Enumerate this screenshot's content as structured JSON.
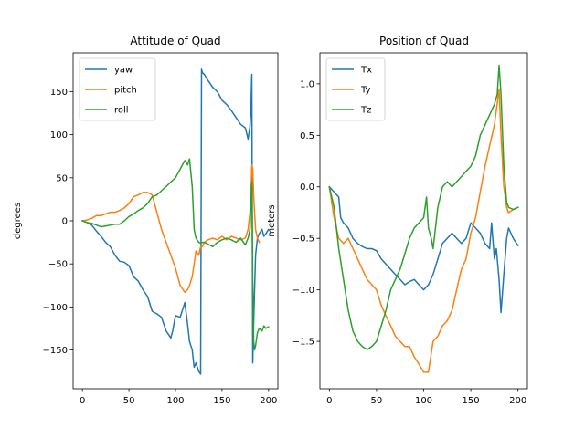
{
  "chart_data": [
    {
      "type": "line",
      "title": "Attitude of Quad",
      "xlabel": "",
      "ylabel": "degrees",
      "xlim": [
        -10,
        210
      ],
      "ylim": [
        -195,
        195
      ],
      "xticks": [
        0,
        50,
        100,
        150,
        200
      ],
      "yticks": [
        -150,
        -100,
        -50,
        0,
        50,
        100,
        150
      ],
      "tick_labels": {
        "x": [
          "0",
          "50",
          "100",
          "150",
          "200"
        ],
        "y": [
          "−150",
          "−100",
          "−50",
          "0",
          "50",
          "100",
          "150"
        ]
      },
      "grid": false,
      "legend_position": "top-left",
      "series": [
        {
          "name": "yaw",
          "color": "#1f77b4",
          "x": [
            0,
            5,
            10,
            15,
            20,
            25,
            30,
            35,
            40,
            45,
            50,
            55,
            60,
            65,
            70,
            75,
            80,
            85,
            90,
            95,
            97,
            100,
            105,
            110,
            113,
            115,
            118,
            120,
            122,
            125,
            127,
            128,
            129,
            131,
            135,
            140,
            145,
            150,
            155,
            160,
            165,
            170,
            175,
            178,
            180,
            181,
            182,
            183,
            184,
            185,
            186,
            188,
            190,
            193,
            195,
            197,
            200
          ],
          "values": [
            0,
            -2,
            -5,
            -12,
            -18,
            -25,
            -30,
            -40,
            -47,
            -48,
            -52,
            -65,
            -70,
            -80,
            -88,
            -105,
            -108,
            -112,
            -128,
            -136,
            -128,
            -110,
            -112,
            -95,
            -120,
            -140,
            -150,
            -170,
            -165,
            -175,
            -178,
            176,
            172,
            170,
            163,
            155,
            150,
            140,
            135,
            128,
            120,
            112,
            108,
            95,
            110,
            130,
            170,
            -165,
            -120,
            -80,
            -40,
            -20,
            -15,
            -10,
            -18,
            -15,
            -10
          ]
        },
        {
          "name": "pitch",
          "color": "#ff7f0e",
          "x": [
            0,
            5,
            10,
            15,
            20,
            25,
            30,
            35,
            40,
            45,
            50,
            55,
            60,
            65,
            70,
            75,
            80,
            85,
            90,
            95,
            100,
            105,
            110,
            113,
            115,
            118,
            120,
            122,
            125,
            127,
            129,
            131,
            135,
            140,
            145,
            150,
            155,
            160,
            165,
            170,
            175,
            178,
            180,
            181,
            182,
            183,
            184,
            185,
            186,
            188,
            190
          ],
          "values": [
            0,
            1,
            3,
            6,
            6,
            8,
            10,
            10,
            12,
            15,
            20,
            28,
            30,
            33,
            33,
            30,
            10,
            -10,
            -25,
            -40,
            -55,
            -75,
            -83,
            -80,
            -75,
            -65,
            -50,
            -35,
            -40,
            -30,
            -30,
            -25,
            -22,
            -20,
            -22,
            -18,
            -22,
            -18,
            -20,
            -22,
            -20,
            -10,
            10,
            30,
            65,
            60,
            30,
            10,
            -10,
            -20,
            -25
          ]
        },
        {
          "name": "roll",
          "color": "#2ca02c",
          "x": [
            0,
            5,
            10,
            15,
            20,
            25,
            30,
            35,
            40,
            45,
            50,
            55,
            60,
            65,
            70,
            75,
            80,
            85,
            90,
            95,
            100,
            105,
            110,
            113,
            115,
            118,
            120,
            122,
            125,
            127,
            129,
            131,
            135,
            140,
            145,
            150,
            155,
            160,
            165,
            170,
            175,
            178,
            180,
            181,
            182,
            183,
            184,
            185,
            186,
            188,
            190,
            193,
            195,
            197,
            200
          ],
          "values": [
            0,
            -2,
            -3,
            -5,
            -7,
            -6,
            -5,
            -4,
            -4,
            0,
            5,
            8,
            12,
            15,
            20,
            28,
            30,
            35,
            40,
            45,
            50,
            60,
            70,
            65,
            72,
            40,
            -10,
            -20,
            -25,
            -26,
            -25,
            -25,
            -27,
            -30,
            -25,
            -22,
            -20,
            -22,
            -25,
            -20,
            -28,
            -20,
            -10,
            20,
            45,
            -70,
            -140,
            -150,
            -145,
            -130,
            -125,
            -128,
            -122,
            -125,
            -123
          ]
        }
      ]
    },
    {
      "type": "line",
      "title": "Position of Quad",
      "xlabel": "",
      "ylabel": "meters",
      "xlim": [
        -10,
        210
      ],
      "ylim": [
        -1.96,
        1.3
      ],
      "xticks": [
        0,
        50,
        100,
        150,
        200
      ],
      "yticks": [
        -1.5,
        -1.0,
        -0.5,
        0.0,
        0.5,
        1.0
      ],
      "tick_labels": {
        "x": [
          "0",
          "50",
          "100",
          "150",
          "200"
        ],
        "y": [
          "−1.5",
          "−1.0",
          "−0.5",
          "0.0",
          "0.5",
          "1.0"
        ]
      },
      "grid": false,
      "legend_position": "top-left",
      "series": [
        {
          "name": "Tx",
          "color": "#1f77b4",
          "x": [
            0,
            5,
            10,
            12,
            15,
            20,
            25,
            30,
            35,
            40,
            45,
            50,
            55,
            60,
            65,
            70,
            75,
            80,
            85,
            90,
            95,
            100,
            105,
            110,
            115,
            120,
            125,
            130,
            135,
            140,
            145,
            150,
            155,
            160,
            165,
            170,
            172,
            175,
            177,
            180,
            182,
            185,
            188,
            190,
            195,
            200
          ],
          "values": [
            0,
            -0.05,
            -0.1,
            -0.3,
            -0.35,
            -0.4,
            -0.5,
            -0.55,
            -0.58,
            -0.6,
            -0.6,
            -0.62,
            -0.7,
            -0.75,
            -0.8,
            -0.85,
            -0.9,
            -0.95,
            -0.92,
            -0.9,
            -0.95,
            -1.0,
            -0.95,
            -0.85,
            -0.7,
            -0.55,
            -0.5,
            -0.45,
            -0.5,
            -0.55,
            -0.5,
            -0.35,
            -0.4,
            -0.45,
            -0.55,
            -0.6,
            -0.35,
            -0.7,
            -0.6,
            -0.9,
            -1.22,
            -0.85,
            -0.5,
            -0.4,
            -0.5,
            -0.57
          ]
        },
        {
          "name": "Ty",
          "color": "#ff7f0e",
          "x": [
            0,
            5,
            10,
            15,
            20,
            25,
            30,
            35,
            40,
            45,
            50,
            55,
            60,
            65,
            70,
            75,
            80,
            85,
            90,
            95,
            100,
            105,
            110,
            115,
            120,
            125,
            130,
            135,
            140,
            145,
            150,
            155,
            160,
            165,
            170,
            175,
            180,
            182,
            185,
            188,
            190,
            195,
            200
          ],
          "values": [
            0,
            -0.3,
            -0.5,
            -0.55,
            -0.5,
            -0.6,
            -0.7,
            -0.8,
            -0.9,
            -0.95,
            -1.0,
            -1.15,
            -1.25,
            -1.35,
            -1.45,
            -1.5,
            -1.55,
            -1.55,
            -1.65,
            -1.72,
            -1.8,
            -1.8,
            -1.5,
            -1.45,
            -1.35,
            -1.3,
            -1.2,
            -1.0,
            -0.8,
            -0.7,
            -0.45,
            -0.3,
            -0.05,
            0.2,
            0.4,
            0.6,
            0.95,
            0.5,
            0.0,
            -0.2,
            -0.25,
            -0.22,
            -0.2
          ]
        },
        {
          "name": "Tz",
          "color": "#2ca02c",
          "x": [
            0,
            5,
            10,
            15,
            20,
            25,
            30,
            35,
            40,
            45,
            50,
            55,
            60,
            65,
            70,
            75,
            80,
            85,
            90,
            95,
            100,
            103,
            105,
            108,
            110,
            115,
            120,
            125,
            130,
            135,
            140,
            145,
            150,
            155,
            160,
            165,
            170,
            175,
            178,
            180,
            182,
            185,
            188,
            190,
            195,
            200
          ],
          "values": [
            0,
            -0.2,
            -0.6,
            -0.9,
            -1.2,
            -1.4,
            -1.5,
            -1.55,
            -1.58,
            -1.55,
            -1.5,
            -1.35,
            -1.2,
            -1.0,
            -0.9,
            -0.8,
            -0.65,
            -0.5,
            -0.4,
            -0.35,
            -0.3,
            -0.1,
            -0.4,
            -0.5,
            -0.6,
            -0.2,
            0.0,
            0.05,
            0.0,
            0.05,
            0.1,
            0.15,
            0.2,
            0.3,
            0.5,
            0.6,
            0.7,
            0.8,
            0.9,
            1.18,
            0.9,
            0.2,
            -0.15,
            -0.2,
            -0.22,
            -0.2
          ]
        }
      ]
    }
  ]
}
